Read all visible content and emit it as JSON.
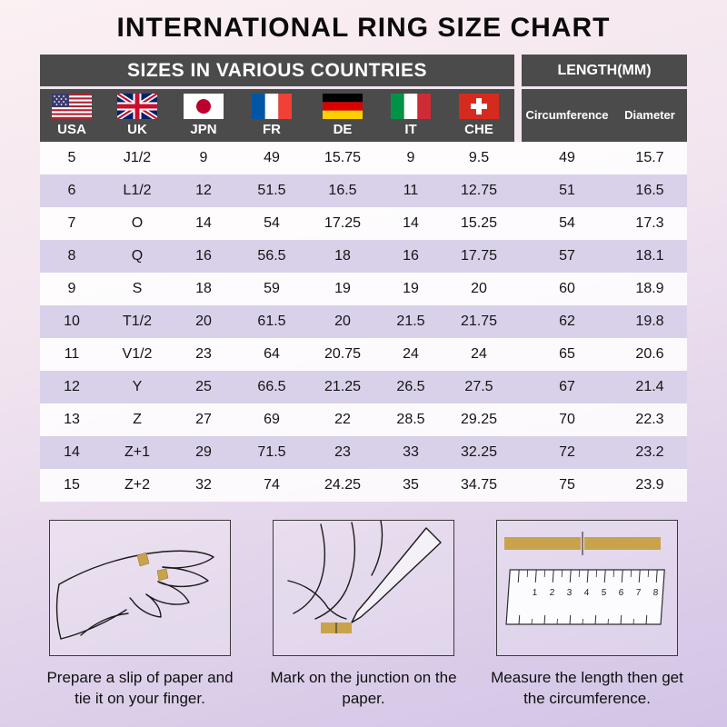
{
  "page": {
    "title": "INTERNATIONAL RING SIZE CHART"
  },
  "table": {
    "header_left": "SIZES IN VARIOUS COUNTRIES",
    "header_right": "LENGTH(MM)",
    "countries": [
      {
        "code": "USA",
        "flag": "usa-flag-icon"
      },
      {
        "code": "UK",
        "flag": "uk-flag-icon"
      },
      {
        "code": "JPN",
        "flag": "japan-flag-icon"
      },
      {
        "code": "FR",
        "flag": "france-flag-icon"
      },
      {
        "code": "DE",
        "flag": "germany-flag-icon"
      },
      {
        "code": "IT",
        "flag": "italy-flag-icon"
      },
      {
        "code": "CHE",
        "flag": "switzerland-flag-icon"
      }
    ],
    "length_columns": [
      "Circumference",
      "Diameter"
    ]
  },
  "chart_data": {
    "type": "table",
    "title": "INTERNATIONAL RING SIZE CHART",
    "columns": [
      "USA",
      "UK",
      "JPN",
      "FR",
      "DE",
      "IT",
      "CHE",
      "Circumference",
      "Diameter"
    ],
    "rows": [
      [
        "5",
        "J1/2",
        "9",
        "49",
        "15.75",
        "9",
        "9.5",
        "49",
        "15.7"
      ],
      [
        "6",
        "L1/2",
        "12",
        "51.5",
        "16.5",
        "11",
        "12.75",
        "51",
        "16.5"
      ],
      [
        "7",
        "O",
        "14",
        "54",
        "17.25",
        "14",
        "15.25",
        "54",
        "17.3"
      ],
      [
        "8",
        "Q",
        "16",
        "56.5",
        "18",
        "16",
        "17.75",
        "57",
        "18.1"
      ],
      [
        "9",
        "S",
        "18",
        "59",
        "19",
        "19",
        "20",
        "60",
        "18.9"
      ],
      [
        "10",
        "T1/2",
        "20",
        "61.5",
        "20",
        "21.5",
        "21.75",
        "62",
        "19.8"
      ],
      [
        "11",
        "V1/2",
        "23",
        "64",
        "20.75",
        "24",
        "24",
        "65",
        "20.6"
      ],
      [
        "12",
        "Y",
        "25",
        "66.5",
        "21.25",
        "26.5",
        "27.5",
        "67",
        "21.4"
      ],
      [
        "13",
        "Z",
        "27",
        "69",
        "22",
        "28.5",
        "29.25",
        "70",
        "22.3"
      ],
      [
        "14",
        "Z+1",
        "29",
        "71.5",
        "23",
        "33",
        "32.25",
        "72",
        "23.2"
      ],
      [
        "15",
        "Z+2",
        "32",
        "74",
        "24.25",
        "35",
        "34.75",
        "75",
        "23.9"
      ]
    ]
  },
  "instructions": [
    {
      "caption": "Prepare a slip of paper and tie it on your finger.",
      "illustration": "hand-with-paper-strip"
    },
    {
      "caption": "Mark on the junction on the paper.",
      "illustration": "hand-marking-with-pen"
    },
    {
      "caption": "Measure the length then get the circumference.",
      "illustration": "ruler-measuring",
      "ruler_numbers": [
        "1",
        "2",
        "3",
        "4",
        "5",
        "6",
        "7",
        "8"
      ]
    }
  ],
  "colors": {
    "header_bg": "#4b4b4b",
    "stripe_row": "#d9d1e9",
    "paper_gold": "#c8a34c"
  }
}
